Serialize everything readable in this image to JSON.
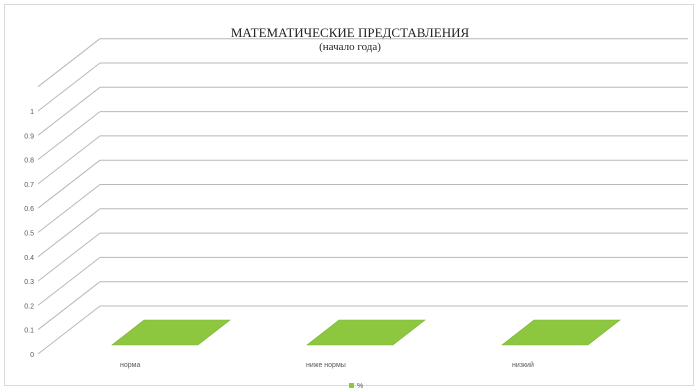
{
  "chart_data": {
    "type": "bar",
    "title": "МАТЕМАТИЧЕСКИЕ ПРЕДСТАВЛЕНИЯ",
    "subtitle": "(начало года)",
    "categories": [
      "норма",
      "ниже нормы",
      "низкий"
    ],
    "series": [
      {
        "name": "%",
        "values": [
          0,
          0,
          0
        ]
      }
    ],
    "yticks": [
      "0",
      "0.1",
      "0.2",
      "0.3",
      "0.4",
      "0.5",
      "0.6",
      "0.7",
      "0.8",
      "0.9",
      "1"
    ],
    "ylim": [
      0,
      1.1
    ],
    "grid": true,
    "legend_position": "bottom",
    "colors": {
      "series": "#8dc63f",
      "grid": "#b8b8b8",
      "text": "#595959"
    }
  }
}
